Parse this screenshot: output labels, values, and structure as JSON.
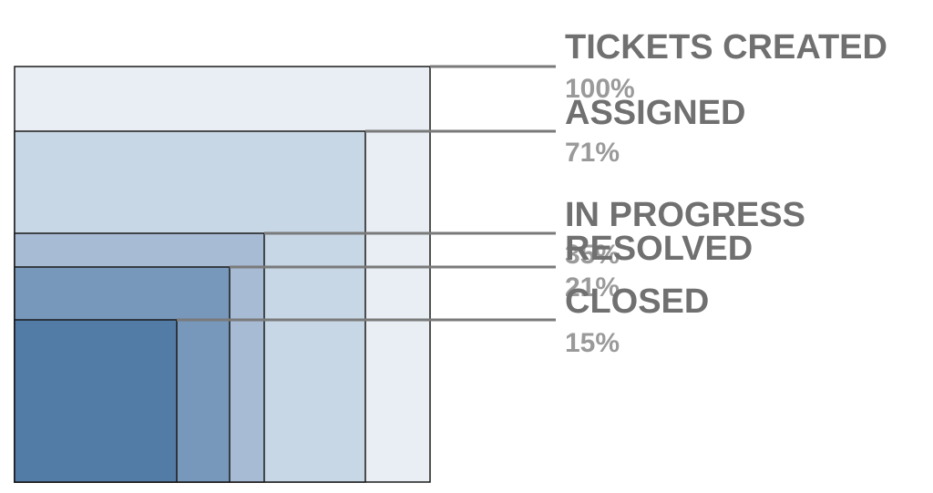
{
  "chart_data": {
    "type": "funnel",
    "stages": [
      {
        "label": "TICKETS CREATED",
        "pct_label": "100%",
        "value": 100,
        "color": "#e8eef4"
      },
      {
        "label": "ASSIGNED",
        "pct_label": "71%",
        "value": 71,
        "color": "#c8d7e5"
      },
      {
        "label": "IN PROGRESS",
        "pct_label": "35%",
        "value": 35,
        "color": "#a7bbd4"
      },
      {
        "label": "RESOLVED",
        "pct_label": "21%",
        "value": 21,
        "color": "#7797bb"
      },
      {
        "label": "CLOSED",
        "pct_label": "15%",
        "value": 15,
        "color": "#527ca6"
      }
    ],
    "connector_color": "#7a7a7a",
    "border_color": "#1a1a1a"
  }
}
